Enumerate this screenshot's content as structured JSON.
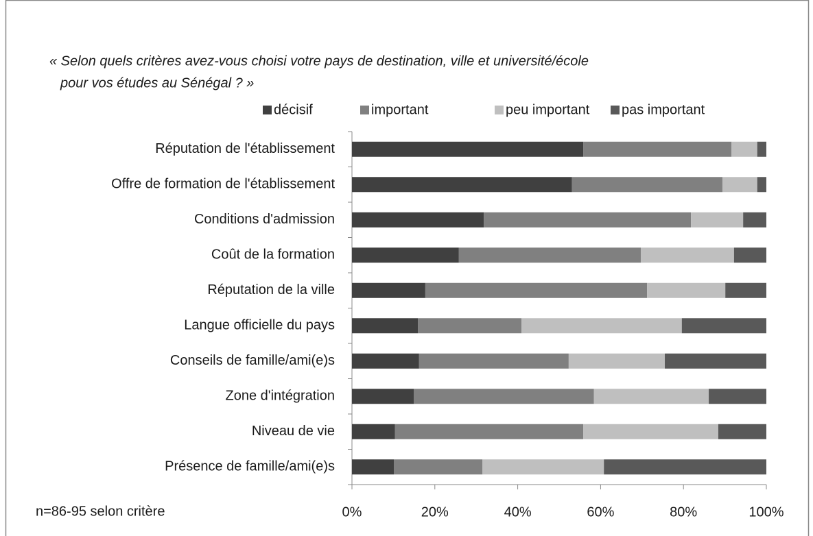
{
  "chart_data": {
    "type": "stacked_barh",
    "title": [
      "« Selon quels critères avez-vous choisi votre pays de destination, ville et université/école",
      "pour vos études au Sénégal ? »"
    ],
    "note": "n=86-95 selon critère",
    "categories": [
      "Réputation de l'établissement",
      "Offre de formation de l'établissement",
      "Conditions d'admission",
      "Coût de la formation",
      "Réputation de la ville",
      "Langue officielle du pays",
      "Conseils de famille/ami(e)s",
      "Zone d'intégration ",
      "Niveau de vie",
      "Présence de famille/ami(e)s"
    ],
    "series": [
      {
        "name": "décisif",
        "color": "#404040",
        "values": [
          55.8,
          53.1,
          31.8,
          25.8,
          17.7,
          15.9,
          16.2,
          14.9,
          10.4,
          10.1
        ]
      },
      {
        "name": "important",
        "color": "#808080",
        "values": [
          35.8,
          36.3,
          50.0,
          43.9,
          53.5,
          25.0,
          36.1,
          43.5,
          45.4,
          21.4
        ]
      },
      {
        "name": "peu important",
        "color": "#bfbfbf",
        "values": [
          6.2,
          8.4,
          12.6,
          22.5,
          18.9,
          38.7,
          23.2,
          27.7,
          32.6,
          29.3
        ]
      },
      {
        "name": "pas important",
        "color": "#595959",
        "values": [
          2.2,
          2.2,
          5.6,
          7.8,
          9.9,
          20.4,
          24.5,
          13.9,
          11.6,
          39.2
        ]
      }
    ],
    "xlim": [
      0,
      100
    ],
    "xticks": [
      {
        "value": 0,
        "label": "0%"
      },
      {
        "value": 20,
        "label": "20%"
      },
      {
        "value": 40,
        "label": "40%"
      },
      {
        "value": 60,
        "label": "60%"
      },
      {
        "value": 80,
        "label": "80%"
      },
      {
        "value": 100,
        "label": "100%"
      }
    ],
    "legend": "top"
  }
}
